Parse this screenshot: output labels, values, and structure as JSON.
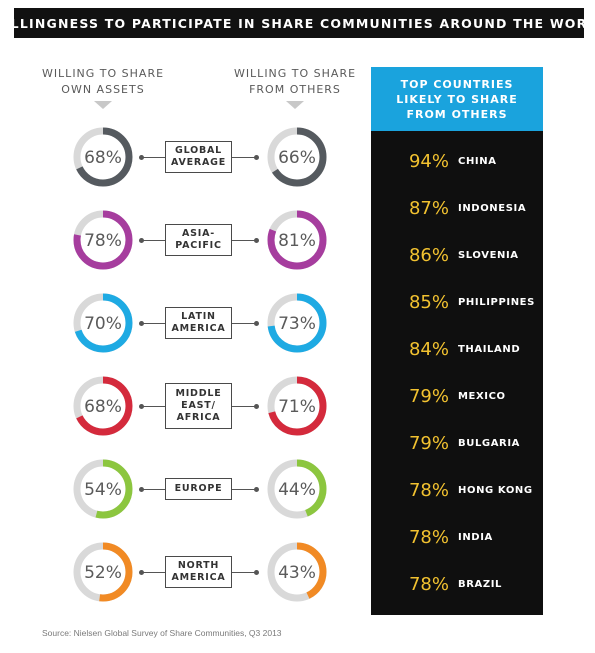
{
  "title": "WILLINGNESS TO PARTICIPATE IN SHARE COMMUNITIES AROUND THE WORLD",
  "left_header": "WILLING TO SHARE\nOWN ASSETS",
  "right_header": "WILLING TO SHARE\nFROM OTHERS",
  "top_panel_header": "TOP COUNTRIES LIKELY TO SHARE FROM OTHERS",
  "source": "Source: Nielsen Global Survey of Share Communities, Q3 2013",
  "colors": {
    "global": "#555a5f",
    "asia": "#a63d9e",
    "latin": "#1eaae3",
    "mea": "#d42a3c",
    "europe": "#8cc63f",
    "north_america": "#f18a24",
    "track": "#d9d9d9",
    "top_pct": "#f2c230",
    "top_header_bg": "#1aa3dd"
  },
  "chart_data": [
    {
      "type": "donut",
      "title": "WILLINGNESS TO PARTICIPATE IN SHARE COMMUNITIES AROUND THE WORLD",
      "categories": [
        "GLOBAL AVERAGE",
        "ASIA-PACIFIC",
        "LATIN AMERICA",
        "MIDDLE EAST/ AFRICA",
        "EUROPE",
        "NORTH AMERICA"
      ],
      "series": [
        {
          "name": "WILLING TO SHARE OWN ASSETS",
          "values": [
            68,
            78,
            70,
            68,
            54,
            52
          ]
        },
        {
          "name": "WILLING TO SHARE FROM OTHERS",
          "values": [
            66,
            81,
            73,
            71,
            44,
            43
          ]
        }
      ],
      "regions": [
        {
          "label": "GLOBAL\nAVERAGE",
          "own": 68,
          "others": 66,
          "own_text": "68%",
          "others_text": "66%",
          "color_key": "global"
        },
        {
          "label": "ASIA-\nPACIFIC",
          "own": 78,
          "others": 81,
          "own_text": "78%",
          "others_text": "81%",
          "color_key": "asia"
        },
        {
          "label": "LATIN\nAMERICA",
          "own": 70,
          "others": 73,
          "own_text": "70%",
          "others_text": "73%",
          "color_key": "latin"
        },
        {
          "label": "MIDDLE\nEAST/\nAFRICA",
          "own": 68,
          "others": 71,
          "own_text": "68%",
          "others_text": "71%",
          "color_key": "mea"
        },
        {
          "label": "EUROPE",
          "own": 54,
          "others": 44,
          "own_text": "54%",
          "others_text": "44%",
          "color_key": "europe"
        },
        {
          "label": "NORTH\nAMERICA",
          "own": 52,
          "others": 43,
          "own_text": "52%",
          "others_text": "43%",
          "color_key": "north_america"
        }
      ]
    },
    {
      "type": "table",
      "title": "TOP COUNTRIES LIKELY TO SHARE FROM OTHERS",
      "rows": [
        {
          "pct": "94%",
          "country": "CHINA",
          "value": 94
        },
        {
          "pct": "87%",
          "country": "INDONESIA",
          "value": 87
        },
        {
          "pct": "86%",
          "country": "SLOVENIA",
          "value": 86
        },
        {
          "pct": "85%",
          "country": "PHILIPPINES",
          "value": 85
        },
        {
          "pct": "84%",
          "country": "THAILAND",
          "value": 84
        },
        {
          "pct": "79%",
          "country": "MEXICO",
          "value": 79
        },
        {
          "pct": "79%",
          "country": "BULGARIA",
          "value": 79
        },
        {
          "pct": "78%",
          "country": "HONG KONG",
          "value": 78
        },
        {
          "pct": "78%",
          "country": "INDIA",
          "value": 78
        },
        {
          "pct": "78%",
          "country": "BRAZIL",
          "value": 78
        }
      ]
    }
  ]
}
